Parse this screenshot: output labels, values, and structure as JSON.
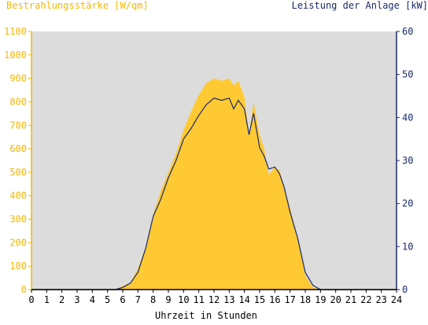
{
  "chart_data": {
    "type": "area",
    "title_left": "Bestrahlungsstärke [W/qm]",
    "title_right": "Leistung der Anlage [kW]",
    "xlabel": "Uhrzeit in Stunden",
    "xlim": [
      0,
      24
    ],
    "xticks": [
      "0",
      "1",
      "2",
      "3",
      "4",
      "5",
      "6",
      "7",
      "8",
      "9",
      "10",
      "11",
      "12",
      "13",
      "14",
      "15",
      "16",
      "17",
      "18",
      "19",
      "20",
      "21",
      "22",
      "23",
      "24"
    ],
    "ylim_left": [
      0,
      1100
    ],
    "yticks_left": [
      "0",
      "100",
      "200",
      "300",
      "400",
      "500",
      "600",
      "700",
      "800",
      "900",
      "1000",
      "1100"
    ],
    "ylim_right": [
      0,
      60
    ],
    "yticks_right": [
      "0",
      "10",
      "20",
      "30",
      "40",
      "50",
      "60"
    ],
    "grid": false,
    "plot_background": "#dcdcdc",
    "series": [
      {
        "axis": "left",
        "style": "area",
        "color": "#ffc933",
        "x": [
          0,
          5.5,
          6,
          6.5,
          7,
          7.5,
          8,
          8.5,
          9,
          9.5,
          10,
          10.5,
          11,
          11.5,
          12,
          12.5,
          13,
          13.3,
          13.6,
          14,
          14.3,
          14.6,
          15,
          15.3,
          15.6,
          16,
          16.3,
          16.6,
          17,
          17.5,
          18,
          18.5,
          19,
          19.5,
          24
        ],
        "values": [
          0,
          0,
          15,
          30,
          90,
          180,
          320,
          420,
          500,
          580,
          680,
          760,
          830,
          880,
          900,
          890,
          900,
          870,
          890,
          820,
          660,
          800,
          660,
          600,
          490,
          520,
          510,
          440,
          350,
          220,
          60,
          10,
          0,
          0,
          0
        ]
      },
      {
        "axis": "right",
        "style": "line",
        "color": "#1a2a6c",
        "x": [
          0,
          5.5,
          6,
          6.5,
          7,
          7.5,
          8,
          8.5,
          9,
          9.5,
          10,
          10.5,
          11,
          11.5,
          12,
          12.5,
          13,
          13.3,
          13.6,
          14,
          14.3,
          14.6,
          15,
          15.3,
          15.6,
          16,
          16.3,
          16.6,
          17,
          17.5,
          18,
          18.5,
          19,
          19.5,
          24
        ],
        "values": [
          0,
          0,
          0.5,
          1.5,
          4,
          9.5,
          17,
          21,
          26,
          30,
          35,
          37.5,
          40.5,
          43,
          44.5,
          44,
          44.5,
          42,
          44,
          42,
          36,
          41,
          33,
          31,
          28,
          28.5,
          27,
          24,
          18,
          12,
          4,
          1,
          0,
          0,
          0
        ]
      }
    ]
  }
}
